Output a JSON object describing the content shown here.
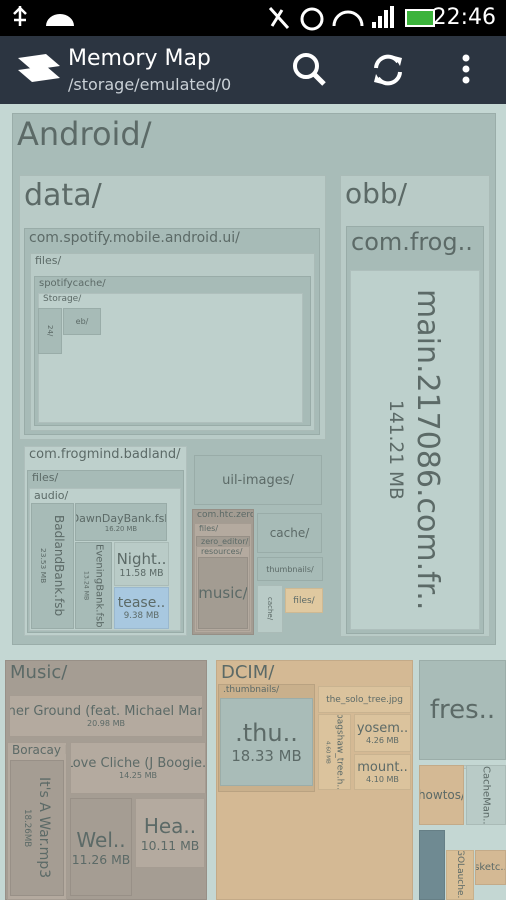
{
  "status_bar": {
    "time": "22:46"
  },
  "app_bar": {
    "title": "Memory Map",
    "subtitle": "/storage/emulated/0"
  },
  "nodes": [
    {
      "label": "Android/"
    },
    {
      "label": "data/"
    },
    {
      "label": "com.spotify.mobile.android.ui/"
    },
    {
      "label": "files/"
    },
    {
      "label": "spotifycache/"
    },
    {
      "label": "Storage/"
    },
    {
      "label": "eb/"
    },
    {
      "label": "24/"
    },
    {
      "label": "obb/"
    },
    {
      "label": "com.frog.."
    },
    {
      "label": "main.217086.com.fr..",
      "size": "141.21 MB"
    },
    {
      "label": "com.frogmind.badland/"
    },
    {
      "label": "files/"
    },
    {
      "label": "audio/"
    },
    {
      "label": "BadlandBank.fsb",
      "size": "23.53 MB"
    },
    {
      "label": "DawnDayBank.fsb",
      "size": "16.20 MB"
    },
    {
      "label": "EveningBank.fsb",
      "size": "13.24 MB"
    },
    {
      "label": "Night..",
      "size": "11.58 MB"
    },
    {
      "label": "tease..",
      "size": "9.38 MB"
    },
    {
      "label": "com.htc.zeroedi.."
    },
    {
      "label": "files/"
    },
    {
      "label": "zero_editor/"
    },
    {
      "label": "resources/"
    },
    {
      "label": "music/"
    },
    {
      "label": "uil-images/"
    },
    {
      "label": "cache/"
    },
    {
      "label": "thumbnails/"
    },
    {
      "label": "files/"
    },
    {
      "label": "cache/"
    },
    {
      "label": "Music/"
    },
    {
      "label": "Higher Ground (feat. Michael Marsh..",
      "size": "20.98 MB"
    },
    {
      "label": "Boracay Pla.."
    },
    {
      "label": "It's A War.mp3",
      "size": "18.26MB"
    },
    {
      "label": "Love Cliche (J Boogie..",
      "size": "14.25 MB"
    },
    {
      "label": "Wel..",
      "size": "11.26 MB"
    },
    {
      "label": "Hea..",
      "size": "10.11 MB"
    },
    {
      "label": "DCIM/"
    },
    {
      "label": ".thumbnails/"
    },
    {
      "label": ".thu..",
      "size": "18.33 MB"
    },
    {
      "label": "the_solo_tree.jpg"
    },
    {
      "label": "bagshaw_tree.h..",
      "size": "4.60 MB"
    },
    {
      "label": "yosem..",
      "size": "4.26 MB"
    },
    {
      "label": "mount..",
      "size": "4.10 MB"
    },
    {
      "label": "fres.."
    },
    {
      "label": "howtos/"
    },
    {
      "label": "CacheMan.."
    },
    {
      "label": "GOLauche.."
    },
    {
      "label": "sketc.."
    }
  ]
}
